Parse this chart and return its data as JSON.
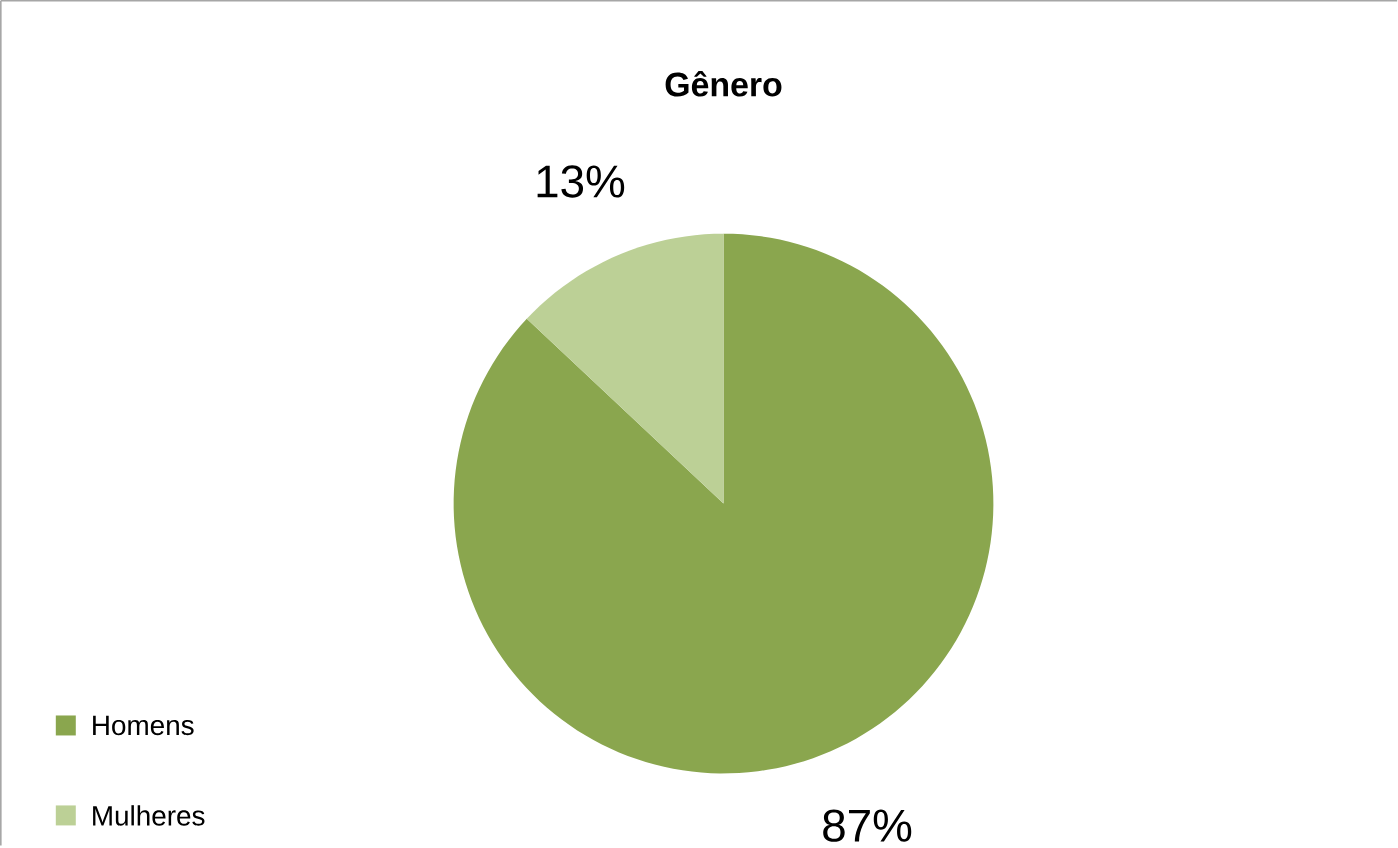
{
  "chart_data": {
    "type": "pie",
    "title": "Gênero",
    "categories": [
      "Homens",
      "Mulheres"
    ],
    "values": [
      87,
      13
    ],
    "colors": [
      "#8aa64e",
      "#bcd096"
    ],
    "value_labels": [
      "87%",
      "13%"
    ],
    "legend": "bottom left"
  }
}
